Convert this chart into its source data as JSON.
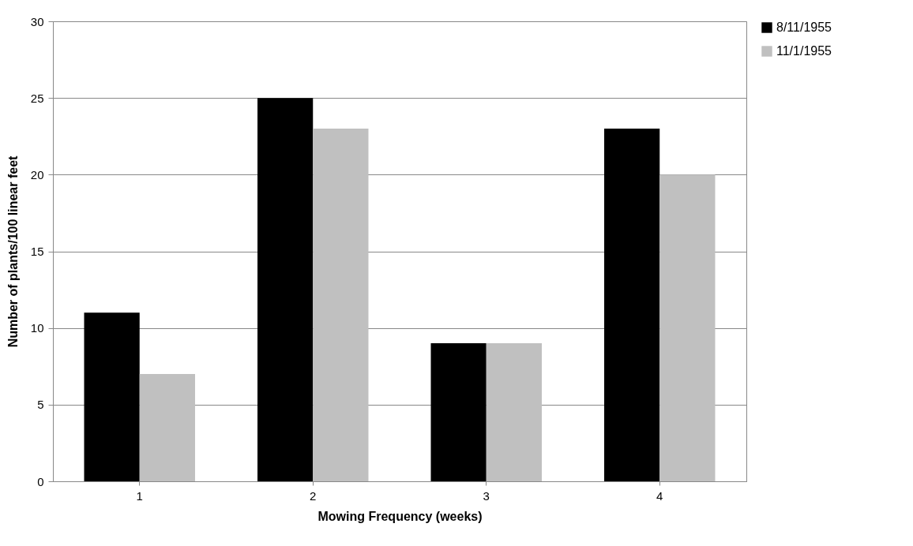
{
  "chart_data": {
    "type": "bar",
    "xlabel": "Mowing Frequency (weeks)",
    "ylabel": "Number of plants/100 linear feet",
    "categories": [
      "1",
      "2",
      "3",
      "4"
    ],
    "series": [
      {
        "name": "8/11/1955",
        "color": "#000000",
        "values": [
          11,
          25,
          9,
          23
        ]
      },
      {
        "name": "11/1/1955",
        "color": "#c0c0c0",
        "values": [
          7,
          23,
          9,
          20
        ]
      }
    ],
    "ylim": [
      0,
      30
    ],
    "yticks": [
      0,
      5,
      10,
      15,
      20,
      25,
      30
    ],
    "grid": "y",
    "legend": "right"
  }
}
